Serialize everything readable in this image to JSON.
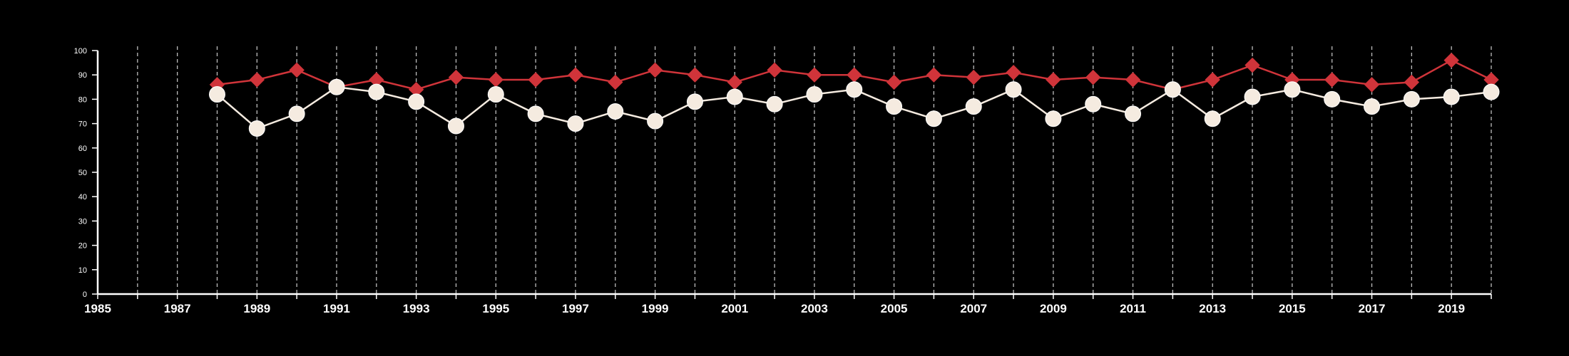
{
  "chart_data": {
    "type": "line",
    "title": "",
    "xlabel": "",
    "ylabel": "",
    "xlim": [
      1985,
      2020
    ],
    "ylim": [
      0,
      100
    ],
    "grid": "vertical dashed lines at every year",
    "legend": "none",
    "x_ticks": [
      1985,
      1986,
      1987,
      1988,
      1989,
      1990,
      1991,
      1992,
      1993,
      1994,
      1995,
      1996,
      1997,
      1998,
      1999,
      2000,
      2001,
      2002,
      2003,
      2004,
      2005,
      2006,
      2007,
      2008,
      2009,
      2010,
      2011,
      2012,
      2013,
      2014,
      2015,
      2016,
      2017,
      2018,
      2019,
      2020
    ],
    "x_tick_labels": [
      "1985",
      "1987",
      "1989",
      "1991",
      "1993",
      "1995",
      "1997",
      "1999",
      "2001",
      "2003",
      "2005",
      "2007",
      "2009",
      "2011",
      "2013",
      "2015",
      "2017",
      "2019"
    ],
    "y_tick_labels": [
      "0",
      "10",
      "20",
      "30",
      "40",
      "50",
      "60",
      "70",
      "80",
      "90",
      "100"
    ],
    "x": [
      1988,
      1989,
      1990,
      1991,
      1992,
      1993,
      1994,
      1995,
      1996,
      1997,
      1998,
      1999,
      2000,
      2001,
      2002,
      2003,
      2004,
      2005,
      2006,
      2007,
      2008,
      2009,
      2010,
      2011,
      2012,
      2013,
      2014,
      2015,
      2016,
      2017,
      2018,
      2019,
      2020
    ],
    "series": [
      {
        "color": "#d0343a",
        "marker": "diamond",
        "values": [
          86,
          88,
          92,
          85,
          88,
          84,
          89,
          88,
          88,
          90,
          87,
          92,
          90,
          87,
          92,
          90,
          90,
          87,
          90,
          89,
          91,
          88,
          89,
          88,
          84,
          88,
          94,
          88,
          88,
          86,
          87,
          96,
          88
        ]
      },
      {
        "color": "#f5ebe0",
        "marker": "circle",
        "values": [
          82,
          68,
          74,
          85,
          83,
          79,
          69,
          82,
          74,
          70,
          75,
          71,
          79,
          81,
          78,
          82,
          84,
          77,
          72,
          77,
          84,
          72,
          78,
          74,
          84,
          72,
          81,
          84,
          80,
          77,
          80,
          81,
          83
        ]
      }
    ]
  }
}
